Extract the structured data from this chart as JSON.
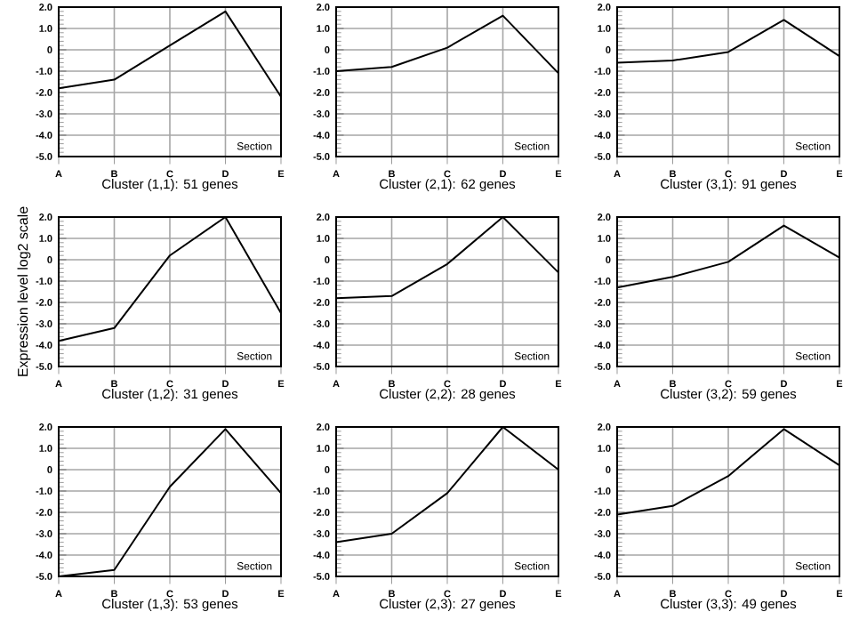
{
  "chart_data": [
    {
      "type": "line",
      "title": "Cluster (1,1): 51 genes",
      "xlabel": "Section",
      "categories": [
        "A",
        "B",
        "C",
        "D",
        "E"
      ],
      "series": [
        {
          "color": "#000000",
          "values": [
            -1.8,
            -1.4,
            0.2,
            1.8,
            -2.2
          ]
        }
      ],
      "ylim": [
        -5,
        2
      ],
      "yticks": [
        {
          "value": -5,
          "label": "-5.0"
        },
        {
          "value": -4,
          "label": "-4.0"
        },
        {
          "value": -3,
          "label": "-3.0"
        },
        {
          "value": -2,
          "label": "-2.0"
        },
        {
          "value": -1,
          "label": "-1.0"
        },
        0,
        {
          "value": 1,
          "label": "1.0"
        },
        {
          "value": 2,
          "label": "2.0"
        }
      ],
      "grid": true
    },
    {
      "type": "line",
      "title": "Cluster (2,1): 62 genes",
      "xlabel": "Section",
      "categories": [
        "A",
        "B",
        "C",
        "D",
        "E"
      ],
      "series": [
        {
          "color": "#000000",
          "values": [
            -1.0,
            -0.8,
            0.1,
            1.6,
            -1.1
          ]
        }
      ],
      "ylim": [
        -5,
        2
      ],
      "yticks": [
        {
          "value": -5,
          "label": "-5.0"
        },
        {
          "value": -4,
          "label": "-4.0"
        },
        {
          "value": -3,
          "label": "-3.0"
        },
        {
          "value": -2,
          "label": "-2.0"
        },
        {
          "value": -1,
          "label": "-1.0"
        },
        0,
        {
          "value": 1,
          "label": "1.0"
        },
        {
          "value": 2,
          "label": "2.0"
        }
      ],
      "grid": true
    },
    {
      "type": "line",
      "title": "Cluster (3,1): 91 genes",
      "xlabel": "Section",
      "categories": [
        "A",
        "B",
        "C",
        "D",
        "E"
      ],
      "series": [
        {
          "color": "#000000",
          "values": [
            -0.6,
            -0.5,
            -0.1,
            1.4,
            -0.3
          ]
        }
      ],
      "ylim": [
        -5,
        2
      ],
      "yticks": [
        {
          "value": -5,
          "label": "-5.0"
        },
        {
          "value": -4,
          "label": "-4.0"
        },
        {
          "value": -3,
          "label": "-3.0"
        },
        {
          "value": -2,
          "label": "-2.0"
        },
        {
          "value": -1,
          "label": "-1.0"
        },
        0,
        {
          "value": 1,
          "label": "1.0"
        },
        {
          "value": 2,
          "label": "2.0"
        }
      ],
      "grid": true
    },
    {
      "type": "line",
      "title": "Cluster (1,2): 31 genes",
      "xlabel": "Section",
      "ylabel": "Expression level log2 scale",
      "categories": [
        "A",
        "B",
        "C",
        "D",
        "E"
      ],
      "series": [
        {
          "color": "#000000",
          "values": [
            -3.8,
            -3.2,
            0.2,
            2.0,
            -2.5
          ]
        }
      ],
      "ylim": [
        -5,
        2
      ],
      "yticks": [
        {
          "value": -5,
          "label": "-5.0"
        },
        {
          "value": -4,
          "label": "-4.0"
        },
        {
          "value": -3,
          "label": "-3.0"
        },
        {
          "value": -2,
          "label": "-2.0"
        },
        {
          "value": -1,
          "label": "-1.0"
        },
        0,
        {
          "value": 1,
          "label": "1.0"
        },
        {
          "value": 2,
          "label": "2.0"
        }
      ],
      "grid": true
    },
    {
      "type": "line",
      "title": "Cluster (2,2): 28 genes",
      "xlabel": "Section",
      "categories": [
        "A",
        "B",
        "C",
        "D",
        "E"
      ],
      "series": [
        {
          "color": "#000000",
          "values": [
            -1.8,
            -1.7,
            -0.2,
            2.0,
            -0.6
          ]
        }
      ],
      "ylim": [
        -5,
        2
      ],
      "yticks": [
        {
          "value": -5,
          "label": "-5.0"
        },
        {
          "value": -4,
          "label": "-4.0"
        },
        {
          "value": -3,
          "label": "-3.0"
        },
        {
          "value": -2,
          "label": "-2.0"
        },
        {
          "value": -1,
          "label": "-1.0"
        },
        0,
        {
          "value": 1,
          "label": "1.0"
        },
        {
          "value": 2,
          "label": "2.0"
        }
      ],
      "grid": true
    },
    {
      "type": "line",
      "title": "Cluster (3,2): 59 genes",
      "xlabel": "Section",
      "categories": [
        "A",
        "B",
        "C",
        "D",
        "E"
      ],
      "series": [
        {
          "color": "#000000",
          "values": [
            -1.3,
            -0.8,
            -0.1,
            1.6,
            0.1
          ]
        }
      ],
      "ylim": [
        -5,
        2
      ],
      "yticks": [
        {
          "value": -5,
          "label": "-5.0"
        },
        {
          "value": -4,
          "label": "-4.0"
        },
        {
          "value": -3,
          "label": "-3.0"
        },
        {
          "value": -2,
          "label": "-2.0"
        },
        {
          "value": -1,
          "label": "-1.0"
        },
        0,
        {
          "value": 1,
          "label": "1.0"
        },
        {
          "value": 2,
          "label": "2.0"
        }
      ],
      "grid": true
    },
    {
      "type": "line",
      "title": "Cluster (1,3): 53 genes",
      "xlabel": "Section",
      "categories": [
        "A",
        "B",
        "C",
        "D",
        "E"
      ],
      "series": [
        {
          "color": "#000000",
          "values": [
            -5.0,
            -4.7,
            -0.8,
            1.9,
            -1.1
          ]
        }
      ],
      "ylim": [
        -5,
        2
      ],
      "yticks": [
        {
          "value": -5,
          "label": "-5.0"
        },
        {
          "value": -4,
          "label": "-4.0"
        },
        {
          "value": -3,
          "label": "-3.0"
        },
        {
          "value": -2,
          "label": "-2.0"
        },
        {
          "value": -1,
          "label": "-1.0"
        },
        0,
        {
          "value": 1,
          "label": "1.0"
        },
        {
          "value": 2,
          "label": "2.0"
        }
      ],
      "grid": true
    },
    {
      "type": "line",
      "title": "Cluster (2,3): 27 genes",
      "xlabel": "Section",
      "categories": [
        "A",
        "B",
        "C",
        "D",
        "E"
      ],
      "series": [
        {
          "color": "#000000",
          "values": [
            -3.4,
            -3.0,
            -1.1,
            2.0,
            0.0
          ]
        }
      ],
      "ylim": [
        -5,
        2
      ],
      "yticks": [
        {
          "value": -5,
          "label": "-5.0"
        },
        {
          "value": -4,
          "label": "-4.0"
        },
        {
          "value": -3,
          "label": "-3.0"
        },
        {
          "value": -2,
          "label": "-2.0"
        },
        {
          "value": -1,
          "label": "-1.0"
        },
        0,
        {
          "value": 1,
          "label": "1.0"
        },
        {
          "value": 2,
          "label": "2.0"
        }
      ],
      "grid": true
    },
    {
      "type": "line",
      "title": "Cluster (3,3): 49 genes",
      "xlabel": "Section",
      "categories": [
        "A",
        "B",
        "C",
        "D",
        "E"
      ],
      "series": [
        {
          "color": "#000000",
          "values": [
            -2.1,
            -1.7,
            -0.3,
            1.9,
            0.2
          ]
        }
      ],
      "ylim": [
        -5,
        2
      ],
      "yticks": [
        {
          "value": -5,
          "label": "-5.0"
        },
        {
          "value": -4,
          "label": "-4.0"
        },
        {
          "value": -3,
          "label": "-3.0"
        },
        {
          "value": -2,
          "label": "-2.0"
        },
        {
          "value": -1,
          "label": "-1.0"
        },
        0,
        {
          "value": 1,
          "label": "1.0"
        },
        {
          "value": 2,
          "label": "2.0"
        }
      ],
      "grid": true
    }
  ]
}
